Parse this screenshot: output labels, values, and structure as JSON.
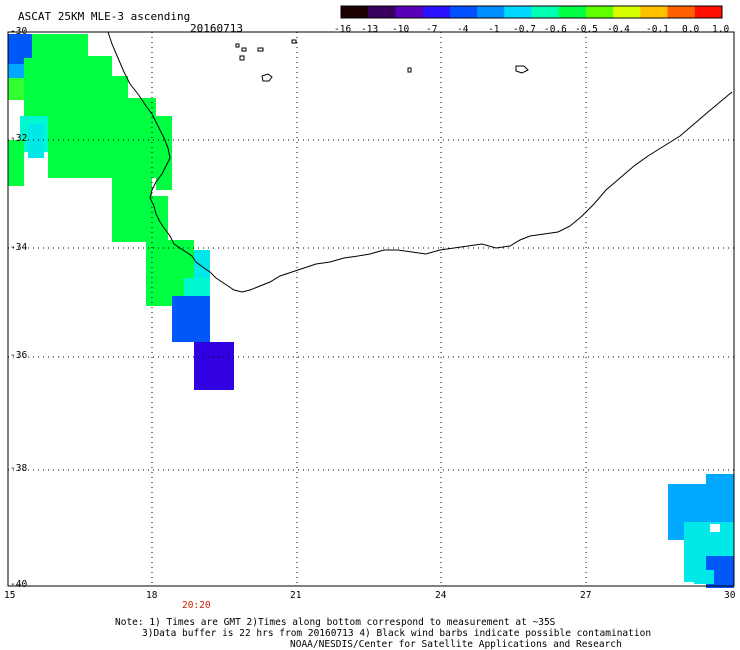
{
  "header": {
    "title": "ASCAT 25KM MLE-3 ascending",
    "date": "20160713"
  },
  "colorbar": {
    "labels": [
      "-16",
      "-13",
      "-10",
      "-7",
      "-4",
      "-1",
      "-0.7",
      "-0.6",
      "-0.5",
      "-0.4",
      "-0.1",
      "0.0",
      "1.0"
    ],
    "colors": [
      "#1a0000",
      "#3a0060",
      "#5a00b8",
      "#2a10ff",
      "#0050ff",
      "#0090ff",
      "#00d8ff",
      "#00ffb0",
      "#00ff40",
      "#60ff00",
      "#d8ff00",
      "#ffc000",
      "#ff6000",
      "#ff1000"
    ]
  },
  "map": {
    "lon_labels": [
      "15",
      "18",
      "21",
      "24",
      "27",
      "30"
    ],
    "lat_labels": [
      "-30",
      "-32",
      "-34",
      "-36",
      "-38",
      "-40"
    ],
    "time_label": "20:20",
    "palette": {
      "land_line": "#000000",
      "grid": "#000000",
      "green": "#00ff40",
      "green_light": "#30ff30",
      "cyan": "#00e8e8",
      "cyan2": "#00f8d0",
      "blue": "#0058f8",
      "blue2": "#2a60ff",
      "lightblue": "#00a8ff",
      "indigo": "#3000e0"
    }
  },
  "notes": {
    "line1": "Note: 1) Times are GMT 2)Times along bottom correspond to measurement at ~35S",
    "line2": "3)Data buffer is 22 hrs from 20160713 4) Black wind barbs indicate possible contamination",
    "line3": "NOAA/NESDIS/Center for Satellite Applications and Research"
  }
}
